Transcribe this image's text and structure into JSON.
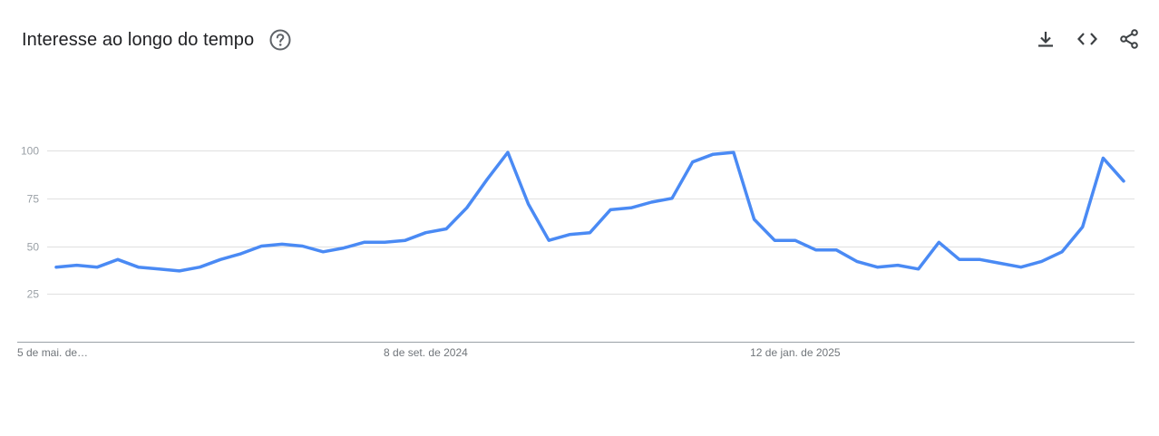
{
  "header": {
    "title": "Interesse ao longo do tempo",
    "help_icon": "help-circle-icon"
  },
  "actions": {
    "download_icon": "download-icon",
    "embed_icon": "code-embed-icon",
    "share_icon": "share-icon"
  },
  "colors": {
    "line": "#4a8af4",
    "grid": "#e0e0e0",
    "axis": "#9aa0a6",
    "tick_text": "#9aa0a6",
    "title": "#202124",
    "icon": "#5f6368"
  },
  "chart_data": {
    "type": "line",
    "title": "Interesse ao longo do tempo",
    "xlabel": "",
    "ylabel": "",
    "ylim": [
      0,
      100
    ],
    "y_ticks": [
      25,
      50,
      75,
      100
    ],
    "grid": true,
    "x_tick_labels": [
      {
        "index": 0,
        "label": "5 de mai. de…"
      },
      {
        "index": 18,
        "label": "8 de set. de 2024"
      },
      {
        "index": 36,
        "label": "12 de jan. de 2025"
      }
    ],
    "series": [
      {
        "values": [
          39,
          40,
          39,
          43,
          39,
          38,
          37,
          39,
          43,
          46,
          50,
          51,
          50,
          47,
          49,
          52,
          52,
          53,
          57,
          59,
          70,
          85,
          99,
          72,
          53,
          56,
          57,
          69,
          70,
          73,
          75,
          94,
          98,
          99,
          64,
          53,
          53,
          48,
          48,
          42,
          39,
          40,
          38,
          52,
          43,
          43,
          41,
          39,
          42,
          47,
          60,
          96,
          84
        ]
      }
    ]
  }
}
